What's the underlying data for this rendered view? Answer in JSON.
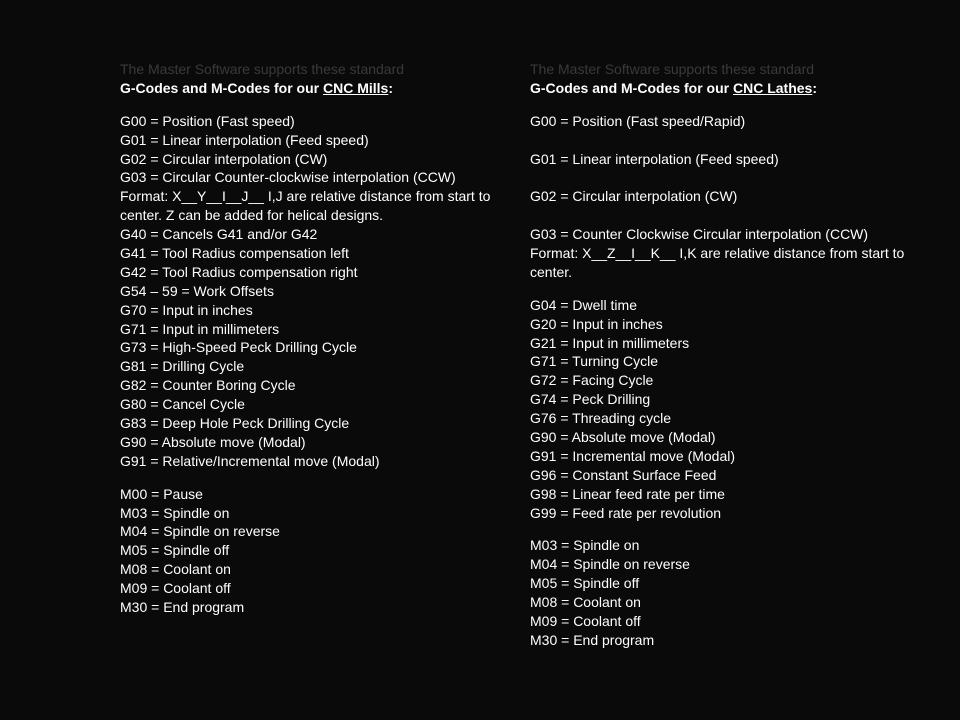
{
  "intro_text": "The Master Software supports these standard",
  "mills": {
    "heading_prefix": "G-Codes and M-Codes for our ",
    "heading_underline": "CNC Mills",
    "heading_suffix": ":",
    "gcodes": [
      "G00 = Position (Fast speed)",
      "G01 = Linear interpolation (Feed speed)",
      "G02 = Circular interpolation (CW)",
      "G03 = Circular Counter-clockwise interpolation (CCW)",
      "Format: X__Y__I__J__  I,J are relative distance from start to center. Z can be added for helical designs.",
      "G40 = Cancels G41 and/or G42",
      "G41 = Tool Radius compensation left",
      "G42 = Tool Radius compensation right",
      "G54 – 59 = Work Offsets",
      "G70 = Input in inches",
      "G71 = Input in millimeters",
      "G73 = High-Speed Peck Drilling Cycle",
      "G81 = Drilling Cycle",
      "G82 = Counter Boring Cycle",
      "G80 = Cancel Cycle",
      "G83 = Deep Hole Peck Drilling Cycle",
      "G90 = Absolute move (Modal)",
      "G91 = Relative/Incremental move (Modal)"
    ],
    "mcodes": [
      "M00 = Pause",
      "M03 = Spindle on",
      "M04 = Spindle on reverse",
      "M05 = Spindle off",
      "M08 = Coolant on",
      "M09 = Coolant off",
      "M30 = End program"
    ]
  },
  "lathes": {
    "heading_prefix": "G-Codes and M-Codes for our ",
    "heading_underline": "CNC Lathes",
    "heading_suffix": ":",
    "gcodes_top": [
      "G00 = Position (Fast speed/Rapid)",
      "",
      "G01 = Linear interpolation (Feed speed)",
      "",
      "G02 = Circular interpolation (CW)",
      "",
      "G03 = Counter Clockwise Circular interpolation (CCW)",
      "Format: X__Z__I__K__  I,K are relative distance from start to center."
    ],
    "gcodes_rest": [
      "G04 = Dwell time",
      "G20 = Input in inches",
      "G21 = Input in millimeters",
      "G71 = Turning Cycle",
      "G72 = Facing Cycle",
      "G74 = Peck Drilling",
      "G76 = Threading cycle",
      "G90 = Absolute move (Modal)",
      "G91 = Incremental move (Modal)",
      "G96 = Constant Surface Feed",
      "G98 = Linear feed rate per time",
      "G99 = Feed rate per revolution"
    ],
    "mcodes": [
      "M03 = Spindle on",
      "M04 = Spindle on reverse",
      "M05 = Spindle off",
      "M08 = Coolant on",
      "M09 = Coolant off",
      "M30 = End program"
    ]
  }
}
